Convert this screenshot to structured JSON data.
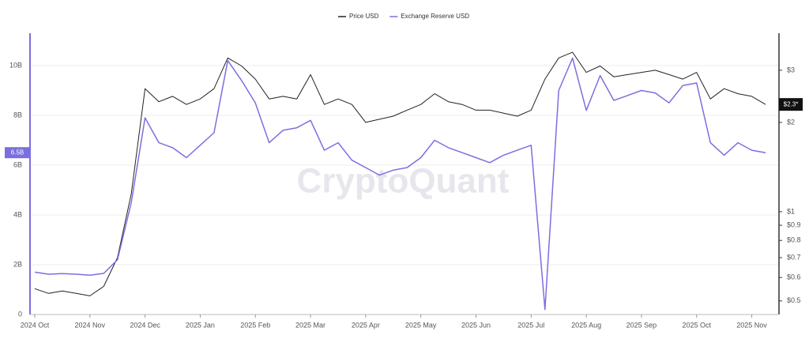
{
  "chart_data": {
    "type": "line",
    "watermark": "CryptoQuant",
    "categories": [
      "2024 Oct",
      null,
      null,
      null,
      "2024 Nov",
      null,
      null,
      null,
      "2024 Dec",
      null,
      null,
      null,
      "2025 Jan",
      null,
      null,
      null,
      "2025 Feb",
      null,
      null,
      null,
      "2025 Mar",
      null,
      null,
      null,
      "2025 Apr",
      null,
      null,
      null,
      "2025 May",
      null,
      null,
      null,
      "2025 Jun",
      null,
      null,
      null,
      "2025 Jul",
      null,
      null,
      null,
      "2025 Aug",
      null,
      null,
      null,
      "2025 Sep",
      null,
      null,
      null,
      "2025 Oct",
      null,
      null,
      null,
      "2025 Nov",
      null
    ],
    "series": [
      {
        "name": "Price USD",
        "color": "#222222",
        "axis": "y2",
        "values": [
          0.55,
          0.53,
          0.54,
          0.53,
          0.52,
          0.56,
          0.7,
          1.15,
          2.6,
          2.35,
          2.45,
          2.3,
          2.4,
          2.6,
          3.3,
          3.1,
          2.8,
          2.4,
          2.45,
          2.4,
          2.9,
          2.3,
          2.4,
          2.3,
          2.0,
          2.05,
          2.1,
          2.2,
          2.3,
          2.5,
          2.35,
          2.3,
          2.2,
          2.2,
          2.15,
          2.1,
          2.2,
          2.8,
          3.3,
          3.45,
          2.95,
          3.1,
          2.85,
          2.9,
          2.95,
          3.0,
          2.9,
          2.8,
          2.95,
          2.4,
          2.6,
          2.5,
          2.45,
          2.3
        ]
      },
      {
        "name": "Exchange Reserve USD",
        "color": "#7b6fe0",
        "values": [
          1.7,
          1.62,
          1.64,
          1.62,
          1.58,
          1.65,
          2.2,
          4.5,
          7.9,
          6.9,
          6.7,
          6.3,
          6.8,
          7.3,
          10.2,
          9.4,
          8.5,
          6.9,
          7.4,
          7.5,
          7.8,
          6.6,
          6.9,
          6.2,
          5.9,
          5.6,
          5.8,
          5.9,
          6.3,
          7.0,
          6.7,
          6.5,
          6.3,
          6.1,
          6.4,
          6.6,
          6.8,
          0.2,
          9.0,
          10.3,
          8.2,
          9.6,
          8.6,
          8.8,
          9.0,
          8.9,
          8.5,
          9.2,
          9.3,
          6.9,
          6.4,
          6.9,
          6.6,
          6.5
        ]
      }
    ],
    "ylim": [
      0,
      11.3
    ],
    "yticks": [
      0,
      {
        "value": 2,
        "label": "2B"
      },
      {
        "value": 4,
        "label": "4B"
      },
      {
        "value": 6,
        "label": "6B"
      },
      {
        "value": 8,
        "label": "8B"
      },
      {
        "value": 10,
        "label": "10B"
      }
    ],
    "y2lim": [
      0.45,
      4
    ],
    "y2log": true,
    "y2ticks": [
      {
        "value": 0.5,
        "label": "$0.5"
      },
      {
        "value": 0.6,
        "label": "$0.6"
      },
      {
        "value": 0.7,
        "label": "$0.7"
      },
      {
        "value": 0.8,
        "label": "$0.8"
      },
      {
        "value": 0.9,
        "label": "$0.9"
      },
      {
        "value": 1,
        "label": "$1"
      },
      {
        "value": 2,
        "label": "$2"
      },
      {
        "value": 3,
        "label": "$3"
      }
    ],
    "y_current": {
      "value": 6.5,
      "label": "6.5B"
    },
    "y2_current": {
      "value": 2.3,
      "label": "$2.3*"
    },
    "grid": true,
    "legend": "top"
  }
}
